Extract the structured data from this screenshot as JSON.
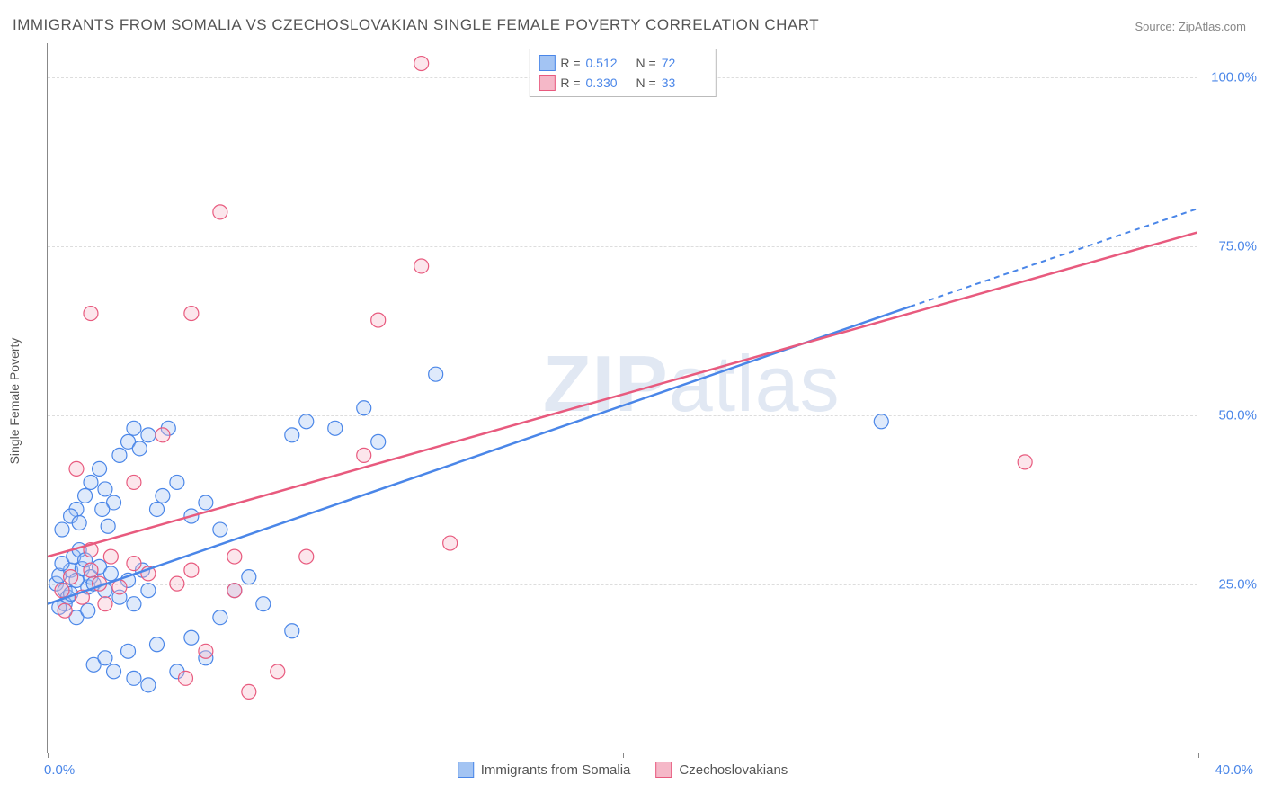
{
  "title": "IMMIGRANTS FROM SOMALIA VS CZECHOSLOVAKIAN SINGLE FEMALE POVERTY CORRELATION CHART",
  "source": "Source: ZipAtlas.com",
  "ylabel": "Single Female Poverty",
  "watermark_bold": "ZIP",
  "watermark_rest": "atlas",
  "chart": {
    "type": "scatter",
    "xlim": [
      0,
      40
    ],
    "ylim": [
      0,
      105
    ],
    "yticks": [
      25,
      50,
      75,
      100
    ],
    "ytick_labels": [
      "25.0%",
      "50.0%",
      "75.0%",
      "100.0%"
    ],
    "xtick_left": "0.0%",
    "xtick_right": "40.0%",
    "xtick_marks": [
      0,
      20,
      40
    ],
    "background_color": "#ffffff",
    "grid_color": "#dddddd",
    "marker_radius": 8,
    "marker_fill_opacity": 0.35,
    "series": [
      {
        "name": "Immigrants from Somalia",
        "color": "#4a86e8",
        "fill": "#a3c4f3",
        "R": "0.512",
        "N": "72",
        "points": [
          [
            0.3,
            25.0
          ],
          [
            0.4,
            26.2
          ],
          [
            0.6,
            24.0
          ],
          [
            0.8,
            27.0
          ],
          [
            0.5,
            28.0
          ],
          [
            0.7,
            23.0
          ],
          [
            1.0,
            25.5
          ],
          [
            1.2,
            27.2
          ],
          [
            0.9,
            29.0
          ],
          [
            1.4,
            24.5
          ],
          [
            0.6,
            22.0
          ],
          [
            1.1,
            30.0
          ],
          [
            1.5,
            26.0
          ],
          [
            0.4,
            21.5
          ],
          [
            0.8,
            23.5
          ],
          [
            1.3,
            28.5
          ],
          [
            1.6,
            25.0
          ],
          [
            1.8,
            27.5
          ],
          [
            2.0,
            24.0
          ],
          [
            2.2,
            26.5
          ],
          [
            2.5,
            23.0
          ],
          [
            1.0,
            20.0
          ],
          [
            1.4,
            21.0
          ],
          [
            2.8,
            25.5
          ],
          [
            3.0,
            22.0
          ],
          [
            3.3,
            27.0
          ],
          [
            3.5,
            24.0
          ],
          [
            1.0,
            36.0
          ],
          [
            1.3,
            38.0
          ],
          [
            1.5,
            40.0
          ],
          [
            1.8,
            42.0
          ],
          [
            2.0,
            39.0
          ],
          [
            2.3,
            37.0
          ],
          [
            2.5,
            44.0
          ],
          [
            2.8,
            46.0
          ],
          [
            3.0,
            48.0
          ],
          [
            3.2,
            45.0
          ],
          [
            3.5,
            47.0
          ],
          [
            3.8,
            36.0
          ],
          [
            4.0,
            38.0
          ],
          [
            4.5,
            40.0
          ],
          [
            5.0,
            35.0
          ],
          [
            5.5,
            37.0
          ],
          [
            6.0,
            33.0
          ],
          [
            6.5,
            24.0
          ],
          [
            7.0,
            26.0
          ],
          [
            8.5,
            47.0
          ],
          [
            9.0,
            49.0
          ],
          [
            10.0,
            48.0
          ],
          [
            11.0,
            51.0
          ],
          [
            11.5,
            46.0
          ],
          [
            13.5,
            56.0
          ],
          [
            0.5,
            33.0
          ],
          [
            0.8,
            35.0
          ],
          [
            1.1,
            34.0
          ],
          [
            1.9,
            36.0
          ],
          [
            2.1,
            33.5
          ],
          [
            4.2,
            48.0
          ],
          [
            1.6,
            13.0
          ],
          [
            2.0,
            14.0
          ],
          [
            2.3,
            12.0
          ],
          [
            2.8,
            15.0
          ],
          [
            3.0,
            11.0
          ],
          [
            3.5,
            10.0
          ],
          [
            3.8,
            16.0
          ],
          [
            4.5,
            12.0
          ],
          [
            5.0,
            17.0
          ],
          [
            5.5,
            14.0
          ],
          [
            6.0,
            20.0
          ],
          [
            7.5,
            22.0
          ],
          [
            8.5,
            18.0
          ],
          [
            29.0,
            49.0
          ]
        ],
        "trend": {
          "x1": 0,
          "y1": 22.0,
          "x2": 30,
          "y2": 66.0,
          "dash_x2": 40,
          "dash_y2": 80.5
        }
      },
      {
        "name": "Czechoslovakians",
        "color": "#e85a7e",
        "fill": "#f5b8c8",
        "R": "0.330",
        "N": "33",
        "points": [
          [
            0.5,
            24.0
          ],
          [
            0.8,
            26.0
          ],
          [
            1.2,
            23.0
          ],
          [
            1.5,
            27.0
          ],
          [
            1.8,
            25.0
          ],
          [
            2.0,
            22.0
          ],
          [
            2.5,
            24.5
          ],
          [
            3.0,
            28.0
          ],
          [
            3.5,
            26.5
          ],
          [
            4.5,
            25.0
          ],
          [
            5.0,
            27.0
          ],
          [
            6.5,
            24.0
          ],
          [
            8.0,
            12.0
          ],
          [
            4.8,
            11.0
          ],
          [
            5.5,
            15.0
          ],
          [
            3.0,
            40.0
          ],
          [
            1.0,
            42.0
          ],
          [
            4.0,
            47.0
          ],
          [
            5.0,
            65.0
          ],
          [
            1.5,
            65.0
          ],
          [
            6.0,
            80.0
          ],
          [
            11.5,
            64.0
          ],
          [
            11.0,
            44.0
          ],
          [
            13.0,
            72.0
          ],
          [
            13.0,
            102.0
          ],
          [
            14.0,
            31.0
          ],
          [
            9.0,
            29.0
          ],
          [
            1.5,
            30.0
          ],
          [
            2.2,
            29.0
          ],
          [
            6.5,
            29.0
          ],
          [
            34.0,
            43.0
          ],
          [
            0.6,
            21.0
          ],
          [
            7.0,
            9.0
          ]
        ],
        "trend": {
          "x1": 0,
          "y1": 29.0,
          "x2": 40,
          "y2": 77.0
        }
      }
    ]
  },
  "legend_top": {
    "r_label": "R =",
    "n_label": "N ="
  }
}
